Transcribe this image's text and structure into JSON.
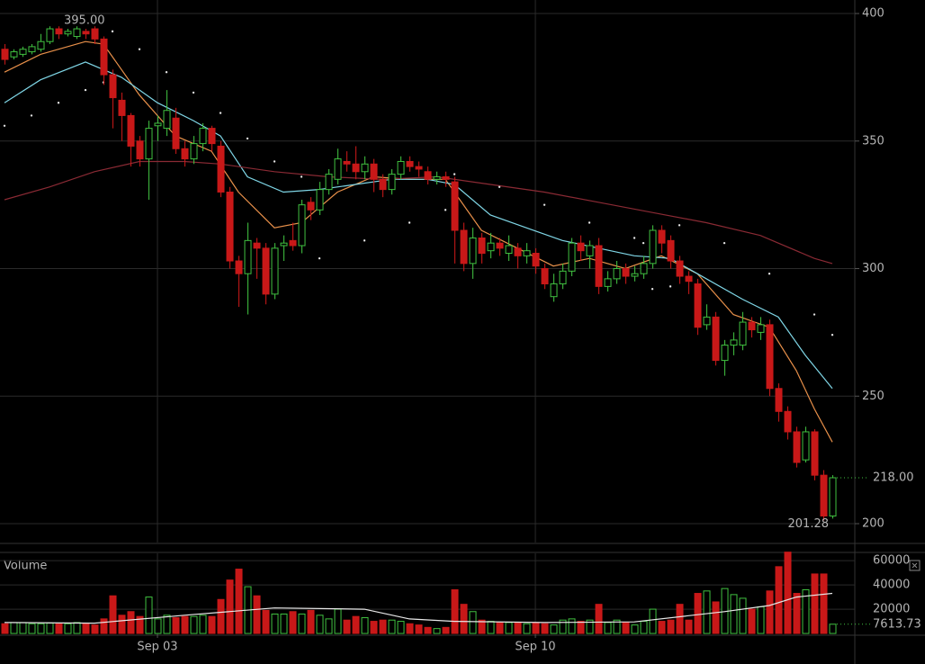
{
  "chart_data": [
    {
      "type": "candlestick",
      "up_color": "#40c040",
      "down_color": "#c81818",
      "open": [
        386,
        383,
        384,
        385,
        386,
        389,
        394,
        392,
        391,
        393,
        394,
        390,
        376,
        366,
        360,
        350,
        343,
        356,
        355,
        359,
        347,
        343,
        349,
        355,
        348,
        330,
        303,
        298,
        310,
        308,
        290,
        309,
        311,
        309,
        326,
        323,
        331,
        335,
        342,
        341,
        338,
        341,
        335,
        331,
        337,
        342,
        340,
        338,
        335,
        336,
        334,
        315,
        302,
        312,
        307,
        310,
        306,
        308,
        305,
        306,
        300,
        289,
        294,
        299,
        310,
        305,
        309,
        293,
        296,
        300,
        297,
        298,
        302,
        315,
        311,
        303,
        297,
        294,
        278,
        281,
        264,
        270,
        270,
        279,
        275,
        278,
        253,
        244,
        236,
        225,
        236,
        219,
        203
      ],
      "high": [
        388,
        386,
        387,
        388,
        392,
        395,
        395,
        394,
        395,
        394,
        395,
        391,
        378,
        369,
        361,
        352,
        358,
        360,
        370,
        363,
        350,
        352,
        357,
        356,
        350,
        332,
        305,
        318,
        312,
        310,
        310,
        313,
        318,
        327,
        328,
        334,
        339,
        347,
        346,
        348,
        344,
        343,
        337,
        339,
        344,
        344,
        342,
        340,
        338,
        338,
        336,
        318,
        316,
        314,
        314,
        312,
        313,
        310,
        310,
        308,
        302,
        298,
        302,
        312,
        313,
        311,
        312,
        299,
        303,
        302,
        301,
        305,
        317,
        317,
        313,
        305,
        299,
        296,
        286,
        283,
        272,
        275,
        283,
        281,
        281,
        280,
        255,
        246,
        238,
        238,
        237,
        221,
        219
      ],
      "low": [
        380,
        382,
        383,
        384,
        385,
        388,
        390,
        391,
        390,
        390,
        388,
        372,
        355,
        350,
        340,
        340,
        327,
        350,
        352,
        345,
        340,
        341,
        346,
        346,
        328,
        300,
        285,
        282,
        296,
        286,
        288,
        303,
        307,
        306,
        319,
        321,
        329,
        333,
        338,
        335,
        335,
        330,
        328,
        329,
        335,
        338,
        336,
        333,
        333,
        332,
        302,
        299,
        296,
        302,
        304,
        305,
        303,
        300,
        302,
        298,
        292,
        287,
        292,
        297,
        303,
        300,
        290,
        291,
        294,
        294,
        295,
        296,
        300,
        306,
        300,
        294,
        290,
        274,
        276,
        262,
        258,
        266,
        268,
        273,
        272,
        250,
        240,
        233,
        222,
        224,
        217,
        201.28,
        202
      ],
      "close": [
        382,
        385,
        386,
        387,
        389,
        394,
        392,
        393,
        394,
        392,
        390,
        376,
        367,
        360,
        348,
        343,
        355,
        357,
        362,
        347,
        343,
        349,
        355,
        349,
        330,
        303,
        298,
        311,
        308,
        290,
        308,
        310,
        309,
        325,
        323,
        331,
        337,
        343,
        341,
        338,
        341,
        335,
        331,
        337,
        342,
        340,
        339,
        335,
        336,
        335,
        315,
        302,
        312,
        306,
        310,
        308,
        309,
        305,
        307,
        301,
        294,
        294,
        299,
        310,
        307,
        309,
        293,
        296,
        300,
        297,
        298,
        302,
        315,
        310,
        303,
        297,
        295,
        277,
        281,
        264,
        270,
        272,
        279,
        276,
        278,
        253,
        244,
        236,
        224,
        236,
        219,
        203,
        218
      ],
      "ylim": [
        192.6,
        405.3
      ],
      "yticks": [
        200,
        250,
        300,
        350,
        400
      ],
      "xlim": [
        -0.5,
        94.5
      ],
      "xticks": [
        {
          "value": 17,
          "label": "Sep 03"
        },
        {
          "value": 59,
          "label": "Sep 10"
        }
      ],
      "grid": true,
      "annotations": [
        {
          "label": "395.00",
          "x": 6,
          "y": 395
        },
        {
          "label": "201.28",
          "x": 91,
          "y": 201.28
        },
        {
          "label": "218.00",
          "x": 92,
          "y": 218
        }
      ],
      "series": [
        {
          "type": "line",
          "color": "#e8904a",
          "x": [
            0,
            4,
            9,
            11,
            15,
            19,
            23,
            26,
            30,
            33,
            37,
            41,
            45,
            49,
            53,
            57,
            61,
            65,
            69,
            73,
            77,
            81,
            85,
            88,
            90,
            92
          ],
          "values": [
            377,
            384,
            389,
            388,
            368,
            352,
            346,
            330,
            316,
            318,
            330,
            336,
            335,
            335,
            315,
            308,
            301,
            304,
            300,
            305,
            298,
            282,
            277,
            260,
            245,
            232
          ]
        },
        {
          "type": "line",
          "color": "#7fd6e6",
          "x": [
            0,
            4,
            9,
            13,
            17,
            21,
            24,
            27,
            31,
            35,
            39,
            43,
            47,
            50,
            54,
            58,
            62,
            66,
            70,
            74,
            77,
            82,
            86,
            89,
            92
          ],
          "values": [
            365,
            374,
            381,
            375,
            365,
            358,
            352,
            336,
            330,
            331,
            333,
            335,
            335,
            333,
            321,
            316,
            311,
            308,
            305,
            304,
            298,
            288,
            281,
            266,
            253
          ]
        },
        {
          "type": "line",
          "color": "#8a2a34",
          "x": [
            0,
            5,
            10,
            15,
            20,
            24,
            30,
            36,
            42,
            48,
            54,
            60,
            66,
            72,
            78,
            84,
            90,
            92
          ],
          "values": [
            327,
            332,
            338,
            342,
            342,
            341,
            338,
            336,
            335,
            336,
            333,
            330,
            326,
            322,
            318,
            313,
            304,
            302
          ]
        },
        {
          "type": "dots",
          "color": "#e0e0e0",
          "x": [
            0,
            3,
            6,
            9,
            11
          ],
          "values": [
            356,
            360,
            365,
            370,
            373
          ]
        },
        {
          "type": "dots",
          "color": "#e0e0e0",
          "x": [
            12,
            15,
            18,
            21,
            24,
            27,
            30,
            33
          ],
          "values": [
            393,
            386,
            377,
            369,
            361,
            351,
            342,
            336
          ]
        },
        {
          "type": "dots",
          "color": "#e0e0e0",
          "x": [
            35,
            40,
            45,
            49
          ],
          "values": [
            304,
            311,
            318,
            323
          ]
        },
        {
          "type": "dots",
          "color": "#e0e0e0",
          "x": [
            50,
            55,
            60,
            65,
            70,
            71
          ],
          "values": [
            337,
            332,
            325,
            318,
            312,
            310
          ]
        },
        {
          "type": "dots",
          "color": "#e0e0e0",
          "x": [
            72,
            74
          ],
          "values": [
            292,
            293
          ]
        },
        {
          "type": "dots",
          "color": "#e0e0e0",
          "x": [
            75,
            80,
            85,
            90,
            92
          ],
          "values": [
            317,
            310,
            298,
            282,
            274
          ]
        }
      ]
    },
    {
      "type": "bar",
      "title": "Volume",
      "values": [
        8000,
        9000,
        9000,
        8000,
        8000,
        8500,
        8000,
        8000,
        9000,
        8000,
        7000,
        12000,
        31000,
        15000,
        18000,
        14000,
        30000,
        12000,
        15000,
        13000,
        14000,
        14000,
        15000,
        14000,
        28000,
        44000,
        53000,
        38500,
        31000,
        19000,
        16000,
        16000,
        18000,
        16000,
        19000,
        15000,
        12000,
        20000,
        11000,
        14000,
        13000,
        10000,
        11000,
        11000,
        10000,
        8000,
        7000,
        5000,
        4000,
        5000,
        36000,
        24000,
        18000,
        11000,
        10000,
        9000,
        9000,
        9000,
        8000,
        9000,
        8000,
        7000,
        11000,
        12000,
        10000,
        11000,
        24000,
        9000,
        11000,
        9000,
        7000,
        10000,
        20000,
        10000,
        11000,
        24000,
        11000,
        33000,
        35000,
        26000,
        37000,
        32000,
        29000,
        20000,
        22000,
        35000,
        55000,
        67000,
        33000,
        36000,
        49000,
        49000,
        7613.73
      ],
      "ylim": [
        -700,
        66000
      ],
      "yticks": [
        20000,
        40000,
        60000
      ],
      "annotations": [
        {
          "label": "7613.73",
          "x": 92,
          "y": 7613.73
        }
      ],
      "series": [
        {
          "type": "line",
          "color": "#e8e8e8",
          "x": [
            0,
            10,
            20,
            30,
            40,
            45,
            50,
            60,
            70,
            80,
            85,
            88,
            92
          ],
          "values": [
            9000,
            8500,
            15000,
            21000,
            20000,
            12000,
            10000,
            9000,
            9500,
            18000,
            23000,
            30000,
            33000
          ]
        }
      ]
    }
  ]
}
